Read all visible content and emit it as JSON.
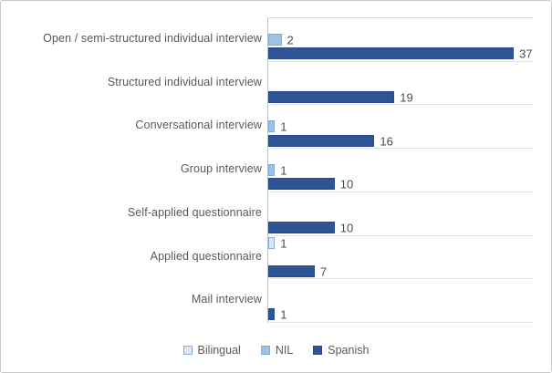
{
  "chart_data": {
    "type": "bar",
    "orientation": "horizontal",
    "title": "",
    "xlabel": "",
    "ylabel": "",
    "xlim": [
      0,
      40
    ],
    "grid": "horizontal-category-separators",
    "value_labels": true,
    "legend_position": "bottom",
    "categories": [
      "Open / semi-structured individual interview",
      "Structured individual interview",
      "Conversational interview",
      "Group interview",
      "Self-applied questionnaire",
      "Applied questionnaire",
      "Mail interview"
    ],
    "series": [
      {
        "name": "Bilingual",
        "values": [
          null,
          null,
          null,
          null,
          null,
          1,
          null
        ],
        "fill": "#dce6f4",
        "border": "#8faadc"
      },
      {
        "name": "NIL",
        "values": [
          2,
          null,
          1,
          1,
          null,
          null,
          null
        ],
        "fill": "#9dc3e6",
        "border": "#7eaad6"
      },
      {
        "name": "Spanish",
        "values": [
          37,
          19,
          16,
          10,
          10,
          7,
          1
        ],
        "fill": "#2f5496",
        "border": "#2a4b87"
      }
    ],
    "colors": {
      "text": "#595959",
      "value_text": "#4d4d4d",
      "axis": "#bfbfbf",
      "gridline": "#e0e0e0",
      "frame_border": "#c9c9c9"
    }
  }
}
